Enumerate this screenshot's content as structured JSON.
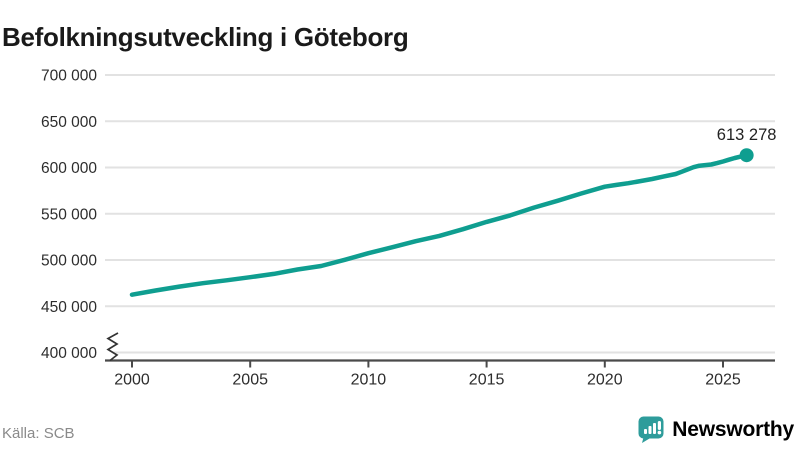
{
  "title": "Befolkningsutveckling i Göteborg",
  "source": "Källa: SCB",
  "logo": {
    "label": "Newsworthy"
  },
  "colors": {
    "line": "#0f9e90",
    "logo_teal": "#2e9c9b",
    "grid": "#e2e2e2",
    "axis": "#4a4a4a",
    "tick_text": "#2d2d2d",
    "annotation_text": "#222222",
    "title_text": "#1a1a1a",
    "muted_text": "#8a8a8a"
  },
  "chart_data": {
    "type": "line",
    "title": "Befolkningsutveckling i Göteborg",
    "xlabel": "",
    "ylabel": "",
    "ylim": [
      400000,
      700000
    ],
    "xlim": [
      2000,
      2026
    ],
    "grid": true,
    "axis_break_at_y": 400000,
    "legend": "none",
    "last_value_label": "613 278",
    "source": "Källa: SCB",
    "x_ticks": [
      2000,
      2005,
      2010,
      2015,
      2020,
      2025
    ],
    "x_tick_labels": [
      "2000",
      "2005",
      "2010",
      "2015",
      "2020",
      "2025"
    ],
    "y_ticks": [
      400000,
      450000,
      500000,
      550000,
      600000,
      650000,
      700000
    ],
    "y_tick_labels": [
      "400 000",
      "450 000",
      "500 000",
      "550 000",
      "600 000",
      "650 000",
      "700 000"
    ],
    "series": [
      {
        "name": "Göteborg",
        "points": [
          [
            2000,
            462470
          ],
          [
            2001,
            466990
          ],
          [
            2002,
            471267
          ],
          [
            2003,
            474921
          ],
          [
            2004,
            478055
          ],
          [
            2005,
            481410
          ],
          [
            2006,
            484942
          ],
          [
            2007,
            489757
          ],
          [
            2008,
            493502
          ],
          [
            2009,
            500197
          ],
          [
            2010,
            507330
          ],
          [
            2011,
            513751
          ],
          [
            2012,
            520374
          ],
          [
            2013,
            526089
          ],
          [
            2014,
            533271
          ],
          [
            2015,
            541145
          ],
          [
            2016,
            548190
          ],
          [
            2017,
            556640
          ],
          [
            2018,
            564039
          ],
          [
            2019,
            571868
          ],
          [
            2020,
            579281
          ],
          [
            2020.5,
            581200
          ],
          [
            2021,
            583056
          ],
          [
            2021.5,
            585300
          ],
          [
            2022,
            587549
          ],
          [
            2022.5,
            590400
          ],
          [
            2023,
            593000
          ],
          [
            2023.25,
            595300
          ],
          [
            2023.5,
            597800
          ],
          [
            2023.75,
            600300
          ],
          [
            2024,
            602000
          ],
          [
            2024.25,
            602600
          ],
          [
            2024.5,
            603200
          ],
          [
            2024.75,
            604800
          ],
          [
            2025,
            606500
          ],
          [
            2025.25,
            608400
          ],
          [
            2025.5,
            610300
          ],
          [
            2025.75,
            611800
          ],
          [
            2026,
            613278
          ]
        ]
      }
    ]
  }
}
